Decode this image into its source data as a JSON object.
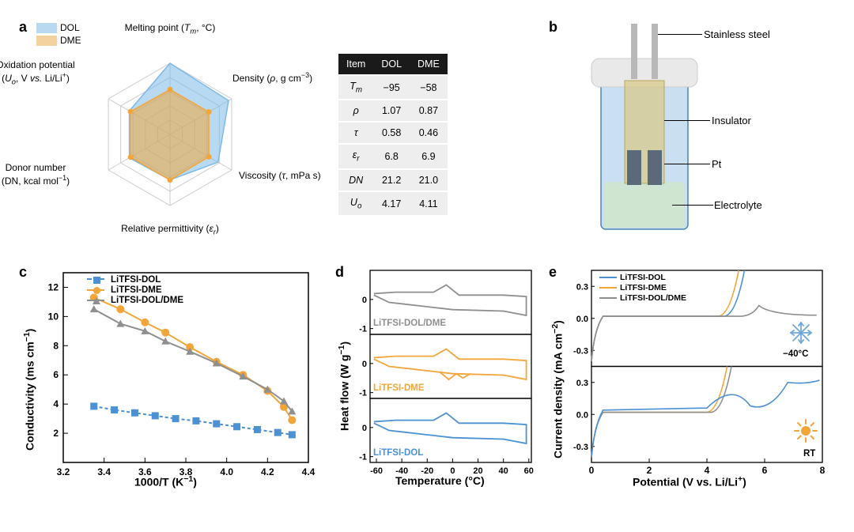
{
  "colors": {
    "dol": "#7db9e8",
    "dol_fill": "rgba(125,185,232,0.55)",
    "dme": "#f2a63a",
    "dme_fill": "rgba(242,166,58,0.55)",
    "grey": "#8f8f8f",
    "grid": "#cccccc",
    "axis": "#000000",
    "bg": "#ffffff"
  },
  "panel_a": {
    "label": "a",
    "legend": [
      {
        "name": "DOL",
        "color": "#b8d9f0"
      },
      {
        "name": "DME",
        "color": "#f3d2a0"
      }
    ],
    "axes": [
      "Melting point (T_m, °C)",
      "Density (ρ, g cm⁻³)",
      "Viscosity (τ, mPa s)",
      "Relative permittivity (ε_r)",
      "Donor number\n(DN, kcal mol⁻¹)",
      "Oxidation potential\n(U_o, V vs. Li/Li⁺)"
    ],
    "dol_norm": [
      1.0,
      0.95,
      0.78,
      0.64,
      0.66,
      0.66
    ],
    "dme_norm": [
      0.63,
      0.63,
      0.63,
      0.64,
      0.64,
      0.64
    ],
    "table": {
      "columns": [
        "Item",
        "DOL",
        "DME"
      ],
      "rows": [
        {
          "item": "T_m",
          "dol": "−95",
          "dme": "−58",
          "italic": true
        },
        {
          "item": "ρ",
          "dol": "1.07",
          "dme": "0.87",
          "italic": true
        },
        {
          "item": "τ",
          "dol": "0.58",
          "dme": "0.46",
          "italic": true
        },
        {
          "item": "ε_r",
          "dol": "6.8",
          "dme": "6.9",
          "italic": true
        },
        {
          "item": "DN",
          "dol": "21.2",
          "dme": "21.0",
          "italic": false
        },
        {
          "item": "U_o",
          "dol": "4.17",
          "dme": "4.11",
          "italic": true
        }
      ]
    }
  },
  "panel_b": {
    "label": "b",
    "parts": [
      "Stainless steel",
      "Insulator",
      "Pt",
      "Electrolyte"
    ],
    "colors": {
      "tube": "#a6c9e8",
      "tube_edge": "#4b86b4",
      "cap": "#e9e9e9",
      "steel": "#b8b8b8",
      "insulator": "#d7c98a",
      "pt": "#5b6a7a",
      "electrolyte": "#cfe5d0"
    }
  },
  "panel_c": {
    "label": "c",
    "ylabel": "Conductivity (ms cm⁻¹)",
    "xlabel": "1000/T (K⁻¹)",
    "xlim": [
      3.2,
      4.4
    ],
    "ylim": [
      0,
      13
    ],
    "xticks": [
      3.2,
      3.4,
      3.6,
      3.8,
      4.0,
      4.2,
      4.4
    ],
    "yticks": [
      2,
      4,
      6,
      8,
      10,
      12
    ],
    "series": [
      {
        "name": "LiTFSI-DOL",
        "color": "#4b91d4",
        "marker": "square",
        "dash": "4,3",
        "x": [
          3.35,
          3.45,
          3.55,
          3.65,
          3.75,
          3.85,
          3.95,
          4.05,
          4.15,
          4.25,
          4.32
        ],
        "y": [
          3.85,
          3.6,
          3.4,
          3.2,
          3.0,
          2.85,
          2.65,
          2.45,
          2.25,
          2.05,
          1.9
        ]
      },
      {
        "name": "LiTFSI-DME",
        "color": "#f2a63a",
        "marker": "circle",
        "dash": "",
        "x": [
          3.35,
          3.48,
          3.6,
          3.7,
          3.82,
          3.95,
          4.08,
          4.2,
          4.28,
          4.32
        ],
        "y": [
          11.3,
          10.5,
          9.6,
          8.9,
          7.9,
          6.9,
          6.0,
          4.9,
          3.8,
          2.9
        ]
      },
      {
        "name": "LiTFSI-DOL/DME",
        "color": "#8f8f8f",
        "marker": "triangle",
        "dash": "",
        "x": [
          3.35,
          3.48,
          3.6,
          3.7,
          3.82,
          3.95,
          4.08,
          4.2,
          4.28,
          4.32
        ],
        "y": [
          10.5,
          9.5,
          9.0,
          8.3,
          7.6,
          6.8,
          5.9,
          5.0,
          4.2,
          3.5
        ]
      }
    ]
  },
  "panel_d": {
    "label": "d",
    "ylabel": "Heat flow (W g⁻¹)",
    "xlabel": "Temperature (°C)",
    "xlim": [
      -65,
      62
    ],
    "ylim": [
      -1.2,
      1.0
    ],
    "xticks": [
      -60,
      -40,
      -20,
      0,
      20,
      40,
      60
    ],
    "yticks": [
      -1,
      0
    ],
    "sub_labels": [
      "LiTFSI-DOL/DME",
      "LiTFSI-DME",
      "LiTFSI-DOL"
    ],
    "sub_colors": [
      "#8f8f8f",
      "#f2a63a",
      "#4b91d4"
    ]
  },
  "panel_e": {
    "label": "e",
    "ylabel": "Current density (mA cm⁻²)",
    "xlabel": "Potential (V vs. Li/Li⁺)",
    "xlim": [
      0,
      8
    ],
    "ylim": [
      -0.45,
      0.45
    ],
    "xticks": [
      0,
      2,
      4,
      6,
      8
    ],
    "yticks": [
      -0.3,
      0.0,
      0.3
    ],
    "legend": [
      "LiTFSI-DOL",
      "LiTFSI-DME",
      "LiTFSI-DOL/DME"
    ],
    "legend_colors": [
      "#4b91d4",
      "#f2a63a",
      "#8f8f8f"
    ],
    "sub_annot": [
      "−40°C",
      "RT"
    ]
  }
}
